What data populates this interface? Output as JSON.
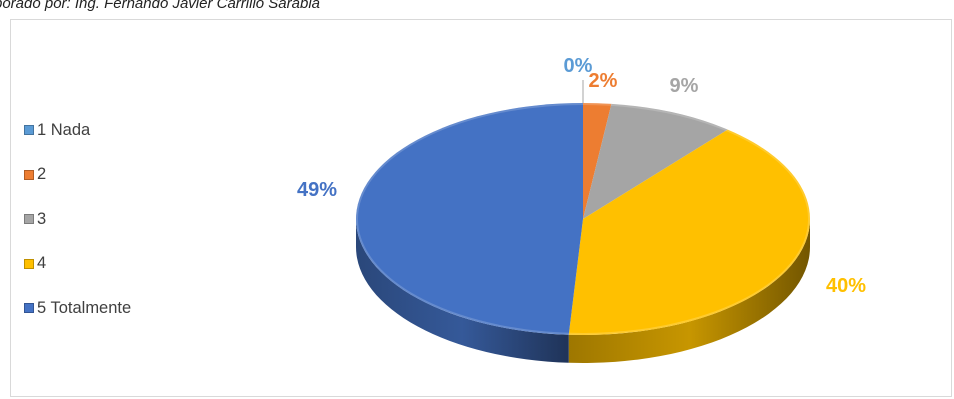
{
  "caption": "borado por: Ing. Fernando Javier Carrillo Sarabia",
  "chart_data": {
    "type": "pie",
    "title": "",
    "categories": [
      "1 Nada",
      "2",
      "3",
      "4",
      "5 Totalmente"
    ],
    "values": [
      0,
      2,
      9,
      40,
      49
    ],
    "labels": [
      "0%",
      "2%",
      "9%",
      "40%",
      "49%"
    ],
    "colors": [
      "#5b9bd5",
      "#ed7d31",
      "#a5a5a5",
      "#ffc000",
      "#4472c4"
    ],
    "legend_position": "left",
    "style": "3d"
  }
}
